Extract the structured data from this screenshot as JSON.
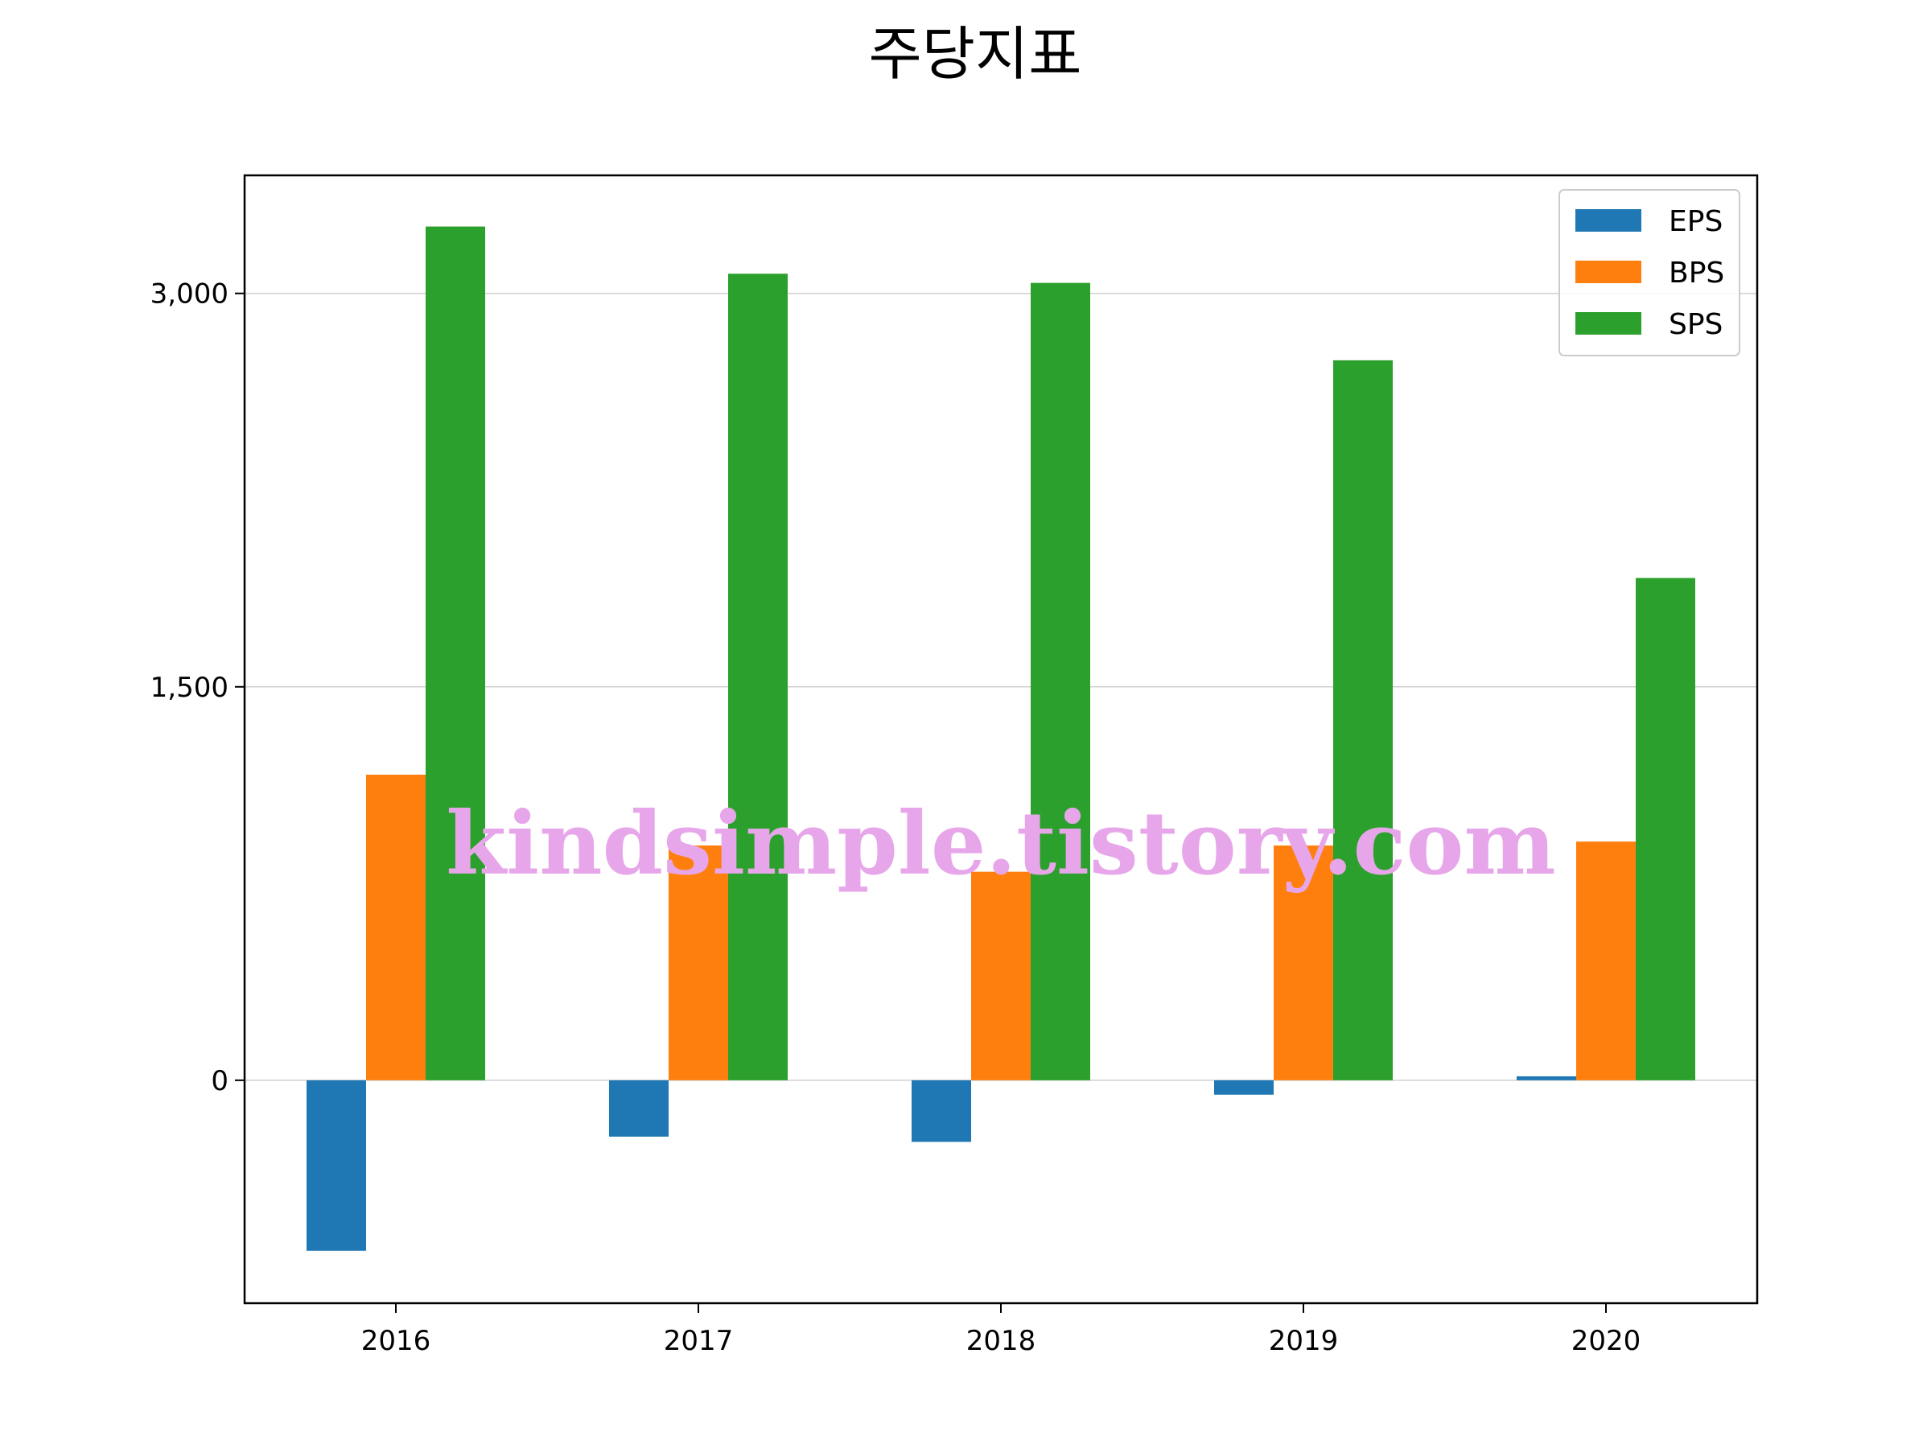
{
  "chart_data": {
    "type": "bar",
    "title": "주당지표",
    "categories": [
      "2016",
      "2017",
      "2018",
      "2019",
      "2020"
    ],
    "series": [
      {
        "name": "EPS",
        "color": "#1f77b4",
        "values": [
          -650,
          -215,
          -235,
          -55,
          15
        ]
      },
      {
        "name": "BPS",
        "color": "#ff7f0e",
        "values": [
          1165,
          895,
          795,
          895,
          910
        ]
      },
      {
        "name": "SPS",
        "color": "#2ca02c",
        "values": [
          3255,
          3075,
          3040,
          2745,
          1915
        ]
      }
    ],
    "ylim": [
      -850,
      3450
    ],
    "yticks": [
      0,
      1500,
      3000
    ],
    "ytick_labels": [
      "0",
      "1,500",
      "3,000"
    ],
    "grid": "horizontal",
    "legend_position": "top-right"
  },
  "watermark": "kindsimple.tistory.com"
}
